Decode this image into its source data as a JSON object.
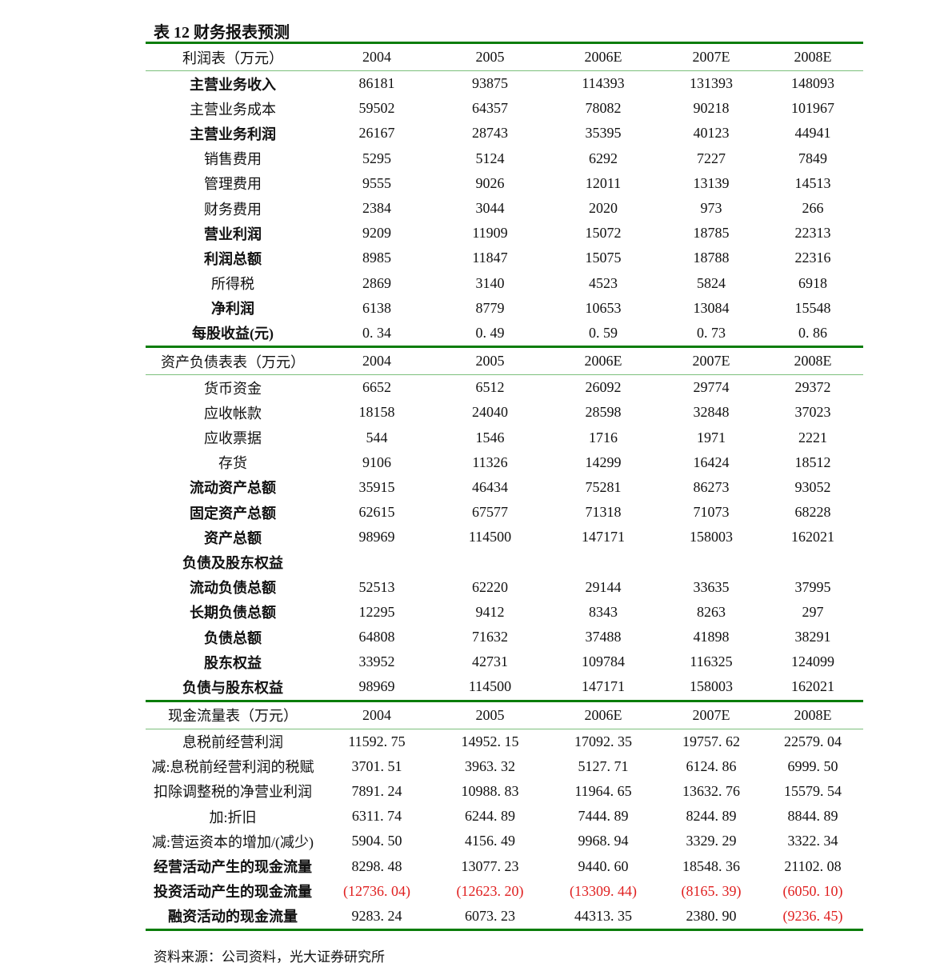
{
  "title": "表 12  财务报表预测",
  "colors": {
    "rule": "#0a7d0a",
    "subrule": "#7cc07c",
    "negative": "#e02020"
  },
  "sections": [
    {
      "header": [
        "利润表（万元）",
        "2004",
        "2005",
        "2006E",
        "2007E",
        "2008E"
      ],
      "rows": [
        {
          "bold": true,
          "cells": [
            "主营业务收入",
            "86181",
            "93875",
            "114393",
            "131393",
            "148093"
          ]
        },
        {
          "bold": false,
          "cells": [
            "主营业务成本",
            "59502",
            "64357",
            "78082",
            "90218",
            "101967"
          ]
        },
        {
          "bold": true,
          "cells": [
            "主营业务利润",
            "26167",
            "28743",
            "35395",
            "40123",
            "44941"
          ]
        },
        {
          "bold": false,
          "cells": [
            "销售费用",
            "5295",
            "5124",
            "6292",
            "7227",
            "7849"
          ]
        },
        {
          "bold": false,
          "cells": [
            "管理费用",
            "9555",
            "9026",
            "12011",
            "13139",
            "14513"
          ]
        },
        {
          "bold": false,
          "cells": [
            "财务费用",
            "2384",
            "3044",
            "2020",
            "973",
            "266"
          ]
        },
        {
          "bold": true,
          "cells": [
            "营业利润",
            "9209",
            "11909",
            "15072",
            "18785",
            "22313"
          ]
        },
        {
          "bold": true,
          "cells": [
            "利润总额",
            "8985",
            "11847",
            "15075",
            "18788",
            "22316"
          ]
        },
        {
          "bold": false,
          "cells": [
            "所得税",
            "2869",
            "3140",
            "4523",
            "5824",
            "6918"
          ]
        },
        {
          "bold": true,
          "cells": [
            "净利润",
            "6138",
            "8779",
            "10653",
            "13084",
            "15548"
          ]
        },
        {
          "bold": true,
          "cells": [
            "每股收益(元)",
            "0. 34",
            "0. 49",
            "0. 59",
            "0. 73",
            "0. 86"
          ]
        }
      ]
    },
    {
      "header": [
        "资产负债表表（万元）",
        "2004",
        "2005",
        "2006E",
        "2007E",
        "2008E"
      ],
      "rows": [
        {
          "bold": false,
          "cells": [
            "货币资金",
            "6652",
            "6512",
            "26092",
            "29774",
            "29372"
          ]
        },
        {
          "bold": false,
          "cells": [
            "应收帐款",
            "18158",
            "24040",
            "28598",
            "32848",
            "37023"
          ]
        },
        {
          "bold": false,
          "cells": [
            "应收票据",
            "544",
            "1546",
            "1716",
            "1971",
            "2221"
          ]
        },
        {
          "bold": false,
          "cells": [
            "存货",
            "9106",
            "11326",
            "14299",
            "16424",
            "18512"
          ]
        },
        {
          "bold": true,
          "cells": [
            "流动资产总额",
            "35915",
            "46434",
            "75281",
            "86273",
            "93052"
          ]
        },
        {
          "bold": true,
          "cells": [
            "固定资产总额",
            "62615",
            "67577",
            "71318",
            "71073",
            "68228"
          ]
        },
        {
          "bold": true,
          "cells": [
            "资产总额",
            "98969",
            "114500",
            "147171",
            "158003",
            "162021"
          ]
        },
        {
          "bold": true,
          "cells": [
            "负债及股东权益",
            "",
            "",
            "",
            "",
            ""
          ]
        },
        {
          "bold": true,
          "cells": [
            "流动负债总额",
            "52513",
            "62220",
            "29144",
            "33635",
            "37995"
          ]
        },
        {
          "bold": true,
          "cells": [
            "长期负债总额",
            "12295",
            "9412",
            "8343",
            "8263",
            "297"
          ]
        },
        {
          "bold": true,
          "cells": [
            "负债总额",
            "64808",
            "71632",
            "37488",
            "41898",
            "38291"
          ]
        },
        {
          "bold": true,
          "cells": [
            "股东权益",
            "33952",
            "42731",
            "109784",
            "116325",
            "124099"
          ]
        },
        {
          "bold": true,
          "cells": [
            "负债与股东权益",
            "98969",
            "114500",
            "147171",
            "158003",
            "162021"
          ]
        }
      ]
    },
    {
      "header": [
        "现金流量表（万元）",
        "2004",
        "2005",
        "2006E",
        "2007E",
        "2008E"
      ],
      "rows": [
        {
          "bold": false,
          "cells": [
            "息税前经营利润",
            "11592. 75",
            "14952. 15",
            "17092. 35",
            "19757. 62",
            "22579. 04"
          ]
        },
        {
          "bold": false,
          "cells": [
            "减:息税前经营利润的税赋",
            "3701. 51",
            "3963. 32",
            "5127. 71",
            "6124. 86",
            "6999. 50"
          ]
        },
        {
          "bold": false,
          "cells": [
            "扣除调整税的净营业利润",
            "7891. 24",
            "10988. 83",
            "11964. 65",
            "13632. 76",
            "15579. 54"
          ]
        },
        {
          "bold": false,
          "cells": [
            "加:折旧",
            "6311. 74",
            "6244. 89",
            "7444. 89",
            "8244. 89",
            "8844. 89"
          ]
        },
        {
          "bold": false,
          "cells": [
            "减:营运资本的增加/(减少)",
            "5904. 50",
            "4156. 49",
            "9968. 94",
            "3329. 29",
            "3322. 34"
          ]
        },
        {
          "bold": true,
          "cells": [
            "经营活动产生的现金流量",
            "8298. 48",
            "13077. 23",
            "9440. 60",
            "18548. 36",
            "21102. 08"
          ]
        },
        {
          "bold": true,
          "cells": [
            "投资活动产生的现金流量",
            "(12736. 04)",
            "(12623. 20)",
            "(13309. 44)",
            "(8165. 39)",
            "(6050. 10)"
          ]
        },
        {
          "bold": true,
          "cells": [
            "融资活动的现金流量",
            "9283. 24",
            "6073. 23",
            "44313. 35",
            "2380. 90",
            "(9236. 45)"
          ]
        }
      ]
    }
  ],
  "source": "资料来源：公司资料，光大证券研究所"
}
